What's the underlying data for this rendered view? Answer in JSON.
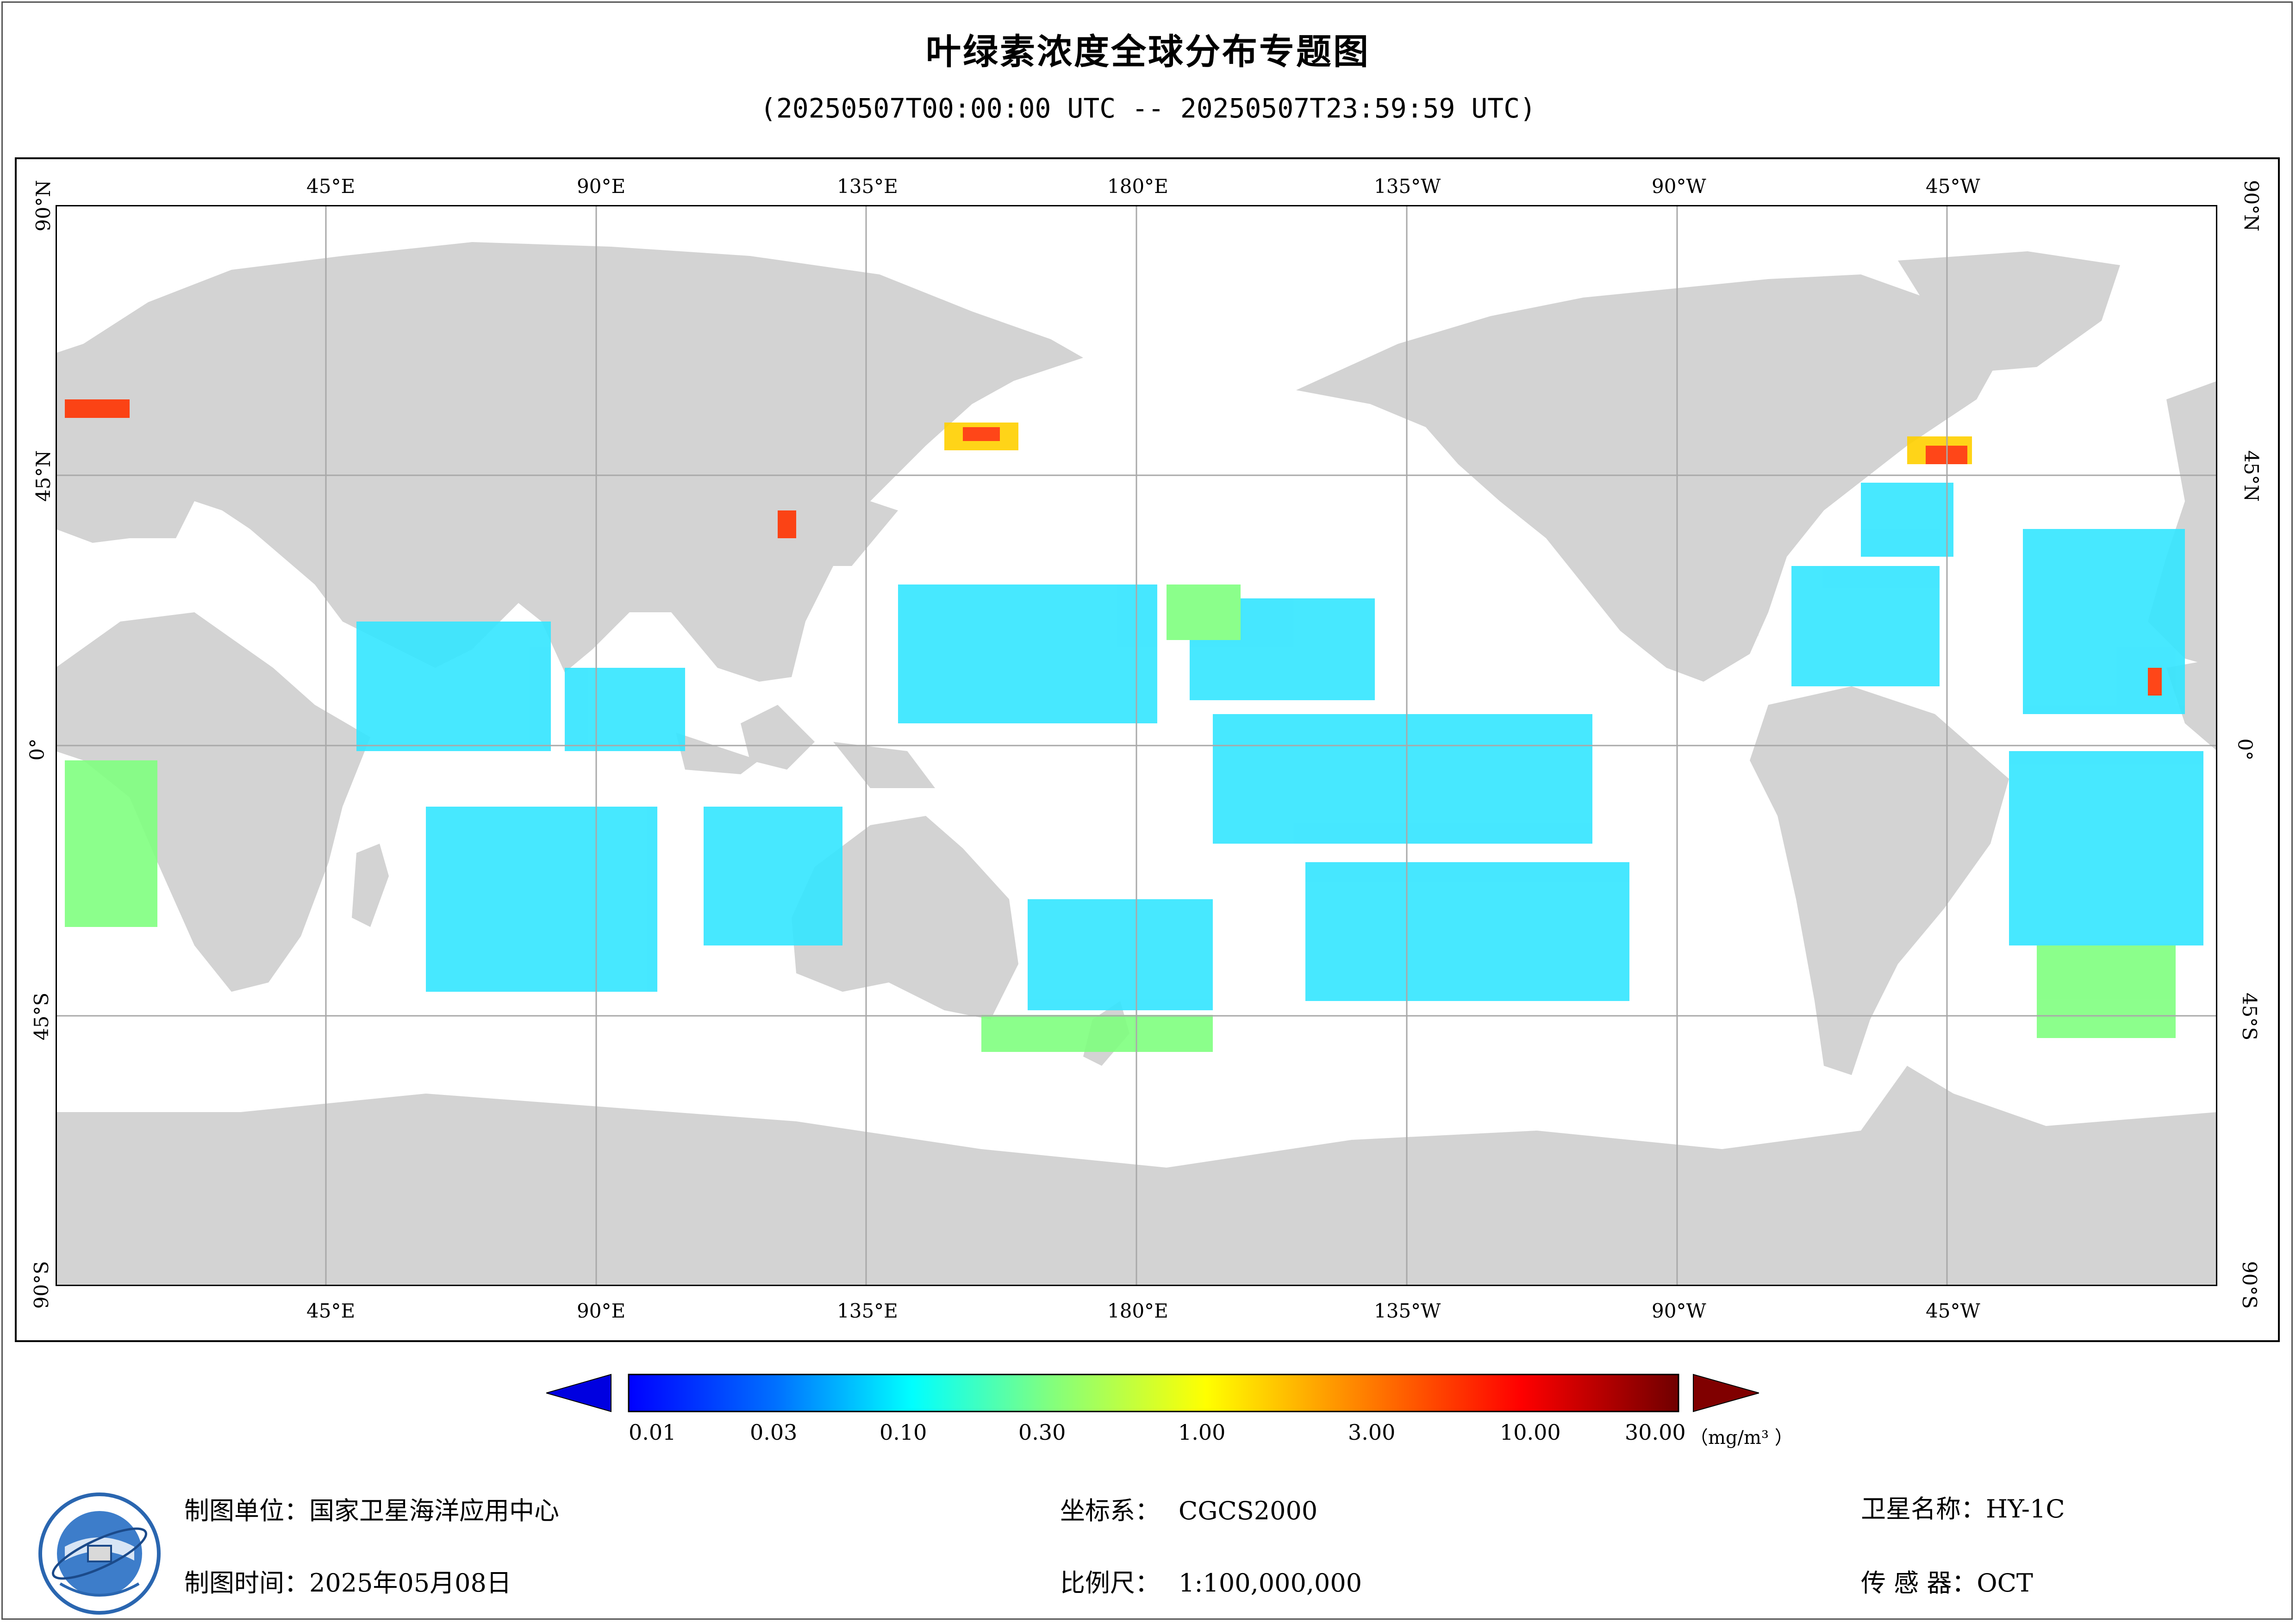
{
  "title": "叶绿素浓度全球分布专题图",
  "subtitle": "(20250507T00:00:00 UTC -- 20250507T23:59:59 UTC)",
  "map": {
    "projection": "equirectangular, central meridian 180°",
    "lon_labels": [
      "45°E",
      "90°E",
      "135°E",
      "180°E",
      "135°W",
      "90°W",
      "45°W"
    ],
    "lat_labels": [
      "90°N",
      "45°N",
      "0°",
      "45°S",
      "90°S"
    ],
    "land_color": "#d3d3d3",
    "ocean_nodata_color": "#ffffff",
    "grid": true
  },
  "colorbar": {
    "labels": [
      "0.01",
      "0.03",
      "0.10",
      "0.30",
      "1.00",
      "3.00",
      "10.00",
      "30.00"
    ],
    "unit": "（mg/m³ ）",
    "colors": [
      "#0000ff",
      "#00a0ff",
      "#00ffff",
      "#80ff80",
      "#ffff00",
      "#ff8000",
      "#ff0000",
      "#800000"
    ],
    "scale": "log"
  },
  "footer": {
    "org_label": "制图单位：",
    "org_value": "国家卫星海洋应用中心",
    "time_label": "制图时间：",
    "time_value": "2025年05月08日",
    "crs_label": "坐标系：",
    "crs_value": "CGCS2000",
    "scale_label": "比例尺：",
    "scale_value": "1:100,000,000",
    "sat_label": "卫星名称：",
    "sat_value": "HY-1C",
    "sensor_label": "传 感 器：",
    "sensor_value": "OCT"
  },
  "logo_icon": "nsoas-globe-logo"
}
